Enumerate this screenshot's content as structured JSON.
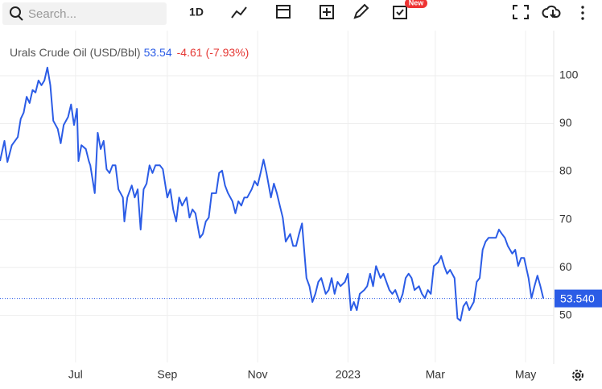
{
  "toolbar": {
    "search_placeholder": "Search...",
    "interval": "1D",
    "badge": "New"
  },
  "chart_data": {
    "type": "line",
    "title": "Urals Crude Oil (USD/Bbl)",
    "last_value": 53.54,
    "change": "-4.61",
    "change_pct": "(-7.93%)",
    "last_price_label": "53.540",
    "series": [
      {
        "name": "Urals Crude Oil",
        "color": "#2b5ce6",
        "x": [
          0,
          3,
          5,
          8,
          12,
          14,
          16,
          18,
          20,
          22,
          24,
          26,
          28,
          30,
          32,
          34,
          36,
          39,
          41,
          43,
          46,
          48,
          50,
          52,
          53,
          55,
          58,
          60,
          61,
          64,
          66,
          68,
          70,
          72,
          74,
          76,
          78,
          80,
          83,
          84,
          86,
          89,
          91,
          93,
          95,
          97,
          99,
          101,
          103,
          105,
          108,
          110,
          113,
          115,
          117,
          119,
          121,
          123,
          126,
          128,
          130,
          132,
          135,
          137,
          139,
          141,
          143,
          146,
          148,
          150,
          152,
          154,
          157,
          159,
          161,
          163,
          165,
          167,
          170,
          172,
          174,
          176,
          178,
          180,
          183,
          185,
          187,
          189,
          191,
          193,
          196,
          198,
          200,
          202,
          204,
          207,
          209,
          211,
          213,
          215,
          217,
          220,
          222,
          224,
          226,
          228,
          230,
          233,
          235,
          237,
          239,
          241,
          243,
          246,
          248,
          250,
          252,
          254,
          257,
          259,
          261,
          263,
          265,
          267,
          270,
          272,
          274,
          276,
          278,
          280,
          283,
          285,
          287,
          289,
          291,
          293,
          296,
          298,
          300,
          302,
          304,
          307,
          309,
          311,
          313,
          315,
          317,
          320,
          322,
          324,
          326,
          328,
          330,
          333,
          335,
          337,
          339,
          341,
          343,
          346,
          348,
          350,
          352,
          354,
          357,
          359,
          361,
          363,
          365,
          367
        ],
        "values": [
          82.2,
          86.4,
          82,
          85.5,
          87.2,
          91,
          92.3,
          95.6,
          94.3,
          97,
          96.5,
          99,
          98,
          99,
          101.7,
          98,
          90.6,
          88.9,
          85.9,
          89.7,
          91.4,
          94,
          89.7,
          93.1,
          82.2,
          85.5,
          84.7,
          82.2,
          81.3,
          75.5,
          88.1,
          84.7,
          86.4,
          80.5,
          79.7,
          81.3,
          81.3,
          76.3,
          74.6,
          69.6,
          74.6,
          77.1,
          74.6,
          76.3,
          67.9,
          76.3,
          77.5,
          81.3,
          79.7,
          81.3,
          81.3,
          80.5,
          74.6,
          76.3,
          72.1,
          69.6,
          74.6,
          72.9,
          74.6,
          70.4,
          72.1,
          71.3,
          66.2,
          67,
          69.6,
          70.4,
          75.5,
          75.5,
          79.7,
          80.2,
          77.1,
          75.5,
          73.8,
          71.3,
          73.8,
          72.9,
          74.6,
          74.6,
          76.3,
          78,
          77.1,
          79.7,
          82.5,
          79.7,
          74.6,
          77.5,
          75.5,
          72.9,
          70.4,
          65.4,
          67,
          64.5,
          64.5,
          67,
          69.2,
          57.8,
          56.1,
          52.8,
          54.5,
          57,
          57.8,
          54.5,
          55.3,
          57.8,
          54.5,
          57,
          56.1,
          57,
          58.7,
          51.1,
          52.8,
          51.1,
          54.5,
          55.3,
          56.1,
          58.7,
          56.1,
          60.3,
          57.8,
          58.7,
          57,
          55.3,
          54.5,
          55.3,
          52.8,
          54.5,
          57.8,
          58.7,
          57.8,
          55.3,
          56.1,
          54.5,
          53.6,
          55.3,
          54.5,
          60.3,
          61.1,
          62.4,
          60.3,
          58.7,
          59.5,
          57.8,
          49.4,
          48.9,
          51.9,
          52.8,
          51.1,
          52.8,
          57,
          57.8,
          63.7,
          65.4,
          66.2,
          66.2,
          66.2,
          67.9,
          67,
          66.2,
          64.5,
          62.9,
          63.7,
          60.3,
          62,
          62,
          57.8,
          53.6,
          56.1,
          58.3,
          56.1,
          53.54
        ]
      }
    ],
    "xlim": [
      0,
      374
    ],
    "ylim": [
      40.2,
      109.4
    ],
    "xticks": [
      {
        "value": 51,
        "label": "Jul"
      },
      {
        "value": 113,
        "label": "Sep"
      },
      {
        "value": 174,
        "label": "Nov"
      },
      {
        "value": 235,
        "label": "2023"
      },
      {
        "value": 294,
        "label": "Mar"
      },
      {
        "value": 355,
        "label": "May"
      }
    ],
    "yticks": [
      50,
      60,
      70,
      80,
      90,
      100
    ],
    "grid": true
  }
}
